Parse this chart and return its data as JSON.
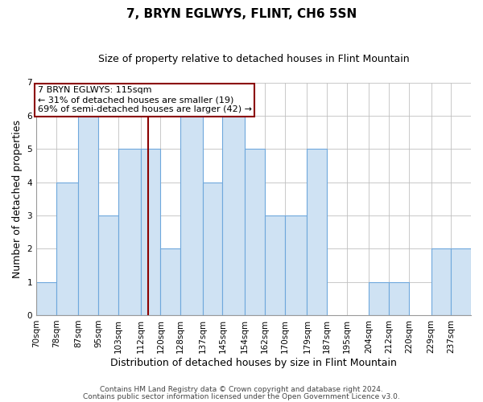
{
  "title": "7, BRYN EGLWYS, FLINT, CH6 5SN",
  "subtitle": "Size of property relative to detached houses in Flint Mountain",
  "xlabel": "Distribution of detached houses by size in Flint Mountain",
  "ylabel": "Number of detached properties",
  "bin_labels": [
    "70sqm",
    "78sqm",
    "87sqm",
    "95sqm",
    "103sqm",
    "112sqm",
    "120sqm",
    "128sqm",
    "137sqm",
    "145sqm",
    "154sqm",
    "162sqm",
    "170sqm",
    "179sqm",
    "187sqm",
    "195sqm",
    "204sqm",
    "212sqm",
    "220sqm",
    "229sqm",
    "237sqm"
  ],
  "bin_edges": [
    70,
    78,
    87,
    95,
    103,
    112,
    120,
    128,
    137,
    145,
    154,
    162,
    170,
    179,
    187,
    195,
    204,
    212,
    220,
    229,
    237,
    245
  ],
  "values": [
    1,
    4,
    6,
    3,
    5,
    5,
    2,
    6,
    4,
    6,
    5,
    3,
    3,
    5,
    0,
    0,
    1,
    1,
    0,
    2,
    2
  ],
  "bar_color": "#cfe2f3",
  "bar_edge_color": "#6fa8dc",
  "reference_line_x": 115,
  "reference_line_color": "#8b0000",
  "annotation_line1": "7 BRYN EGLWYS: 115sqm",
  "annotation_line2": "← 31% of detached houses are smaller (19)",
  "annotation_line3": "69% of semi-detached houses are larger (42) →",
  "annotation_box_color": "#8b0000",
  "annotation_box_facecolor": "#ffffff",
  "ylim": [
    0,
    7
  ],
  "yticks": [
    0,
    1,
    2,
    3,
    4,
    5,
    6,
    7
  ],
  "footnote1": "Contains HM Land Registry data © Crown copyright and database right 2024.",
  "footnote2": "Contains public sector information licensed under the Open Government Licence v3.0.",
  "bg_color": "#ffffff",
  "grid_color": "#c0c0c0",
  "title_fontsize": 11,
  "subtitle_fontsize": 9,
  "axis_label_fontsize": 9,
  "tick_fontsize": 7.5,
  "annotation_fontsize": 8,
  "footnote_fontsize": 6.5
}
